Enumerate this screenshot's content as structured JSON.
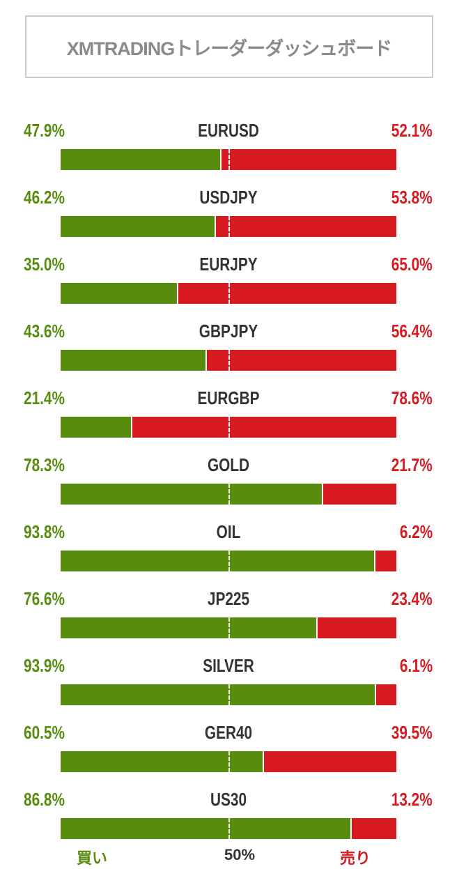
{
  "title": "XMTRADINGトレーダーダッシュボード",
  "colors": {
    "buy": "#578c0e",
    "sell": "#d71920"
  },
  "rows": [
    {
      "symbol": "EURUSD",
      "buy_pct": 47.9,
      "buy": "47.9%",
      "sell": "52.1%"
    },
    {
      "symbol": "USDJPY",
      "buy_pct": 46.2,
      "buy": "46.2%",
      "sell": "53.8%"
    },
    {
      "symbol": "EURJPY",
      "buy_pct": 35.0,
      "buy": "35.0%",
      "sell": "65.0%"
    },
    {
      "symbol": "GBPJPY",
      "buy_pct": 43.6,
      "buy": "43.6%",
      "sell": "56.4%"
    },
    {
      "symbol": "EURGBP",
      "buy_pct": 21.4,
      "buy": "21.4%",
      "sell": "78.6%"
    },
    {
      "symbol": "GOLD",
      "buy_pct": 78.3,
      "buy": "78.3%",
      "sell": "21.7%"
    },
    {
      "symbol": "OIL",
      "buy_pct": 93.8,
      "buy": "93.8%",
      "sell": "6.2%"
    },
    {
      "symbol": "JP225",
      "buy_pct": 76.6,
      "buy": "76.6%",
      "sell": "23.4%"
    },
    {
      "symbol": "SILVER",
      "buy_pct": 93.9,
      "buy": "93.9%",
      "sell": "6.1%"
    },
    {
      "symbol": "GER40",
      "buy_pct": 60.5,
      "buy": "60.5%",
      "sell": "39.5%"
    },
    {
      "symbol": "US30",
      "buy_pct": 86.8,
      "buy": "86.8%",
      "sell": "13.2%"
    }
  ],
  "footer": {
    "buy": "買い",
    "mid": "50%",
    "sell": "売り"
  }
}
